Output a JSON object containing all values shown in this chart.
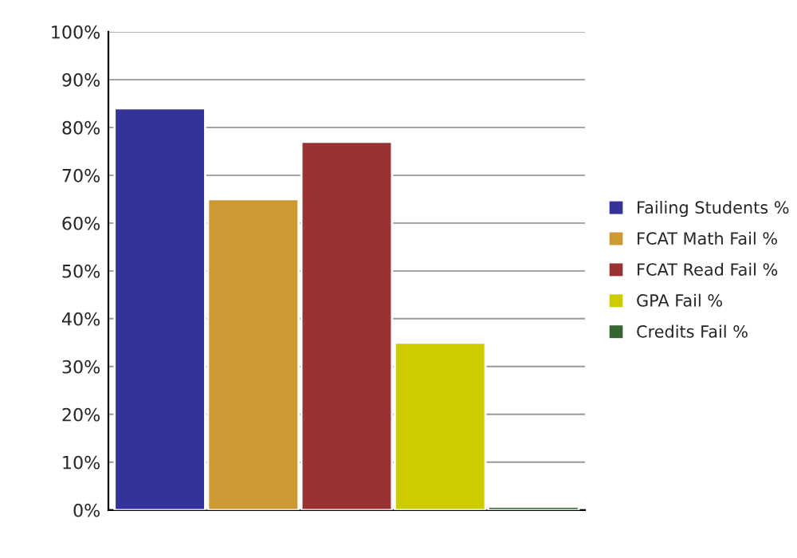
{
  "chart_data": {
    "type": "bar",
    "categories": [
      null
    ],
    "series": [
      {
        "name": "Failing Students %",
        "color": "#333399",
        "values": [
          84
        ]
      },
      {
        "name": "FCAT Math Fail %",
        "color": "#cc9933",
        "values": [
          65
        ]
      },
      {
        "name": "FCAT Read Fail %",
        "color": "#993333",
        "values": [
          77
        ]
      },
      {
        "name": "GPA Fail %",
        "color": "#cccc00",
        "values": [
          35
        ]
      },
      {
        "name": "Credits Fail %",
        "color": "#336633",
        "values": [
          0.7
        ]
      }
    ],
    "ylim": [
      0,
      100
    ],
    "yticks": [
      {
        "value": 0,
        "label": "0%"
      },
      {
        "value": 10,
        "label": "10%"
      },
      {
        "value": 20,
        "label": "20%"
      },
      {
        "value": 30,
        "label": "30%"
      },
      {
        "value": 40,
        "label": "40%"
      },
      {
        "value": 50,
        "label": "50%"
      },
      {
        "value": 60,
        "label": "60%"
      },
      {
        "value": 70,
        "label": "70%"
      },
      {
        "value": 80,
        "label": "80%"
      },
      {
        "value": 90,
        "label": "90%"
      },
      {
        "value": 100,
        "label": "100%"
      }
    ],
    "grid": "y",
    "legend": "right",
    "tick_labels": "y"
  }
}
